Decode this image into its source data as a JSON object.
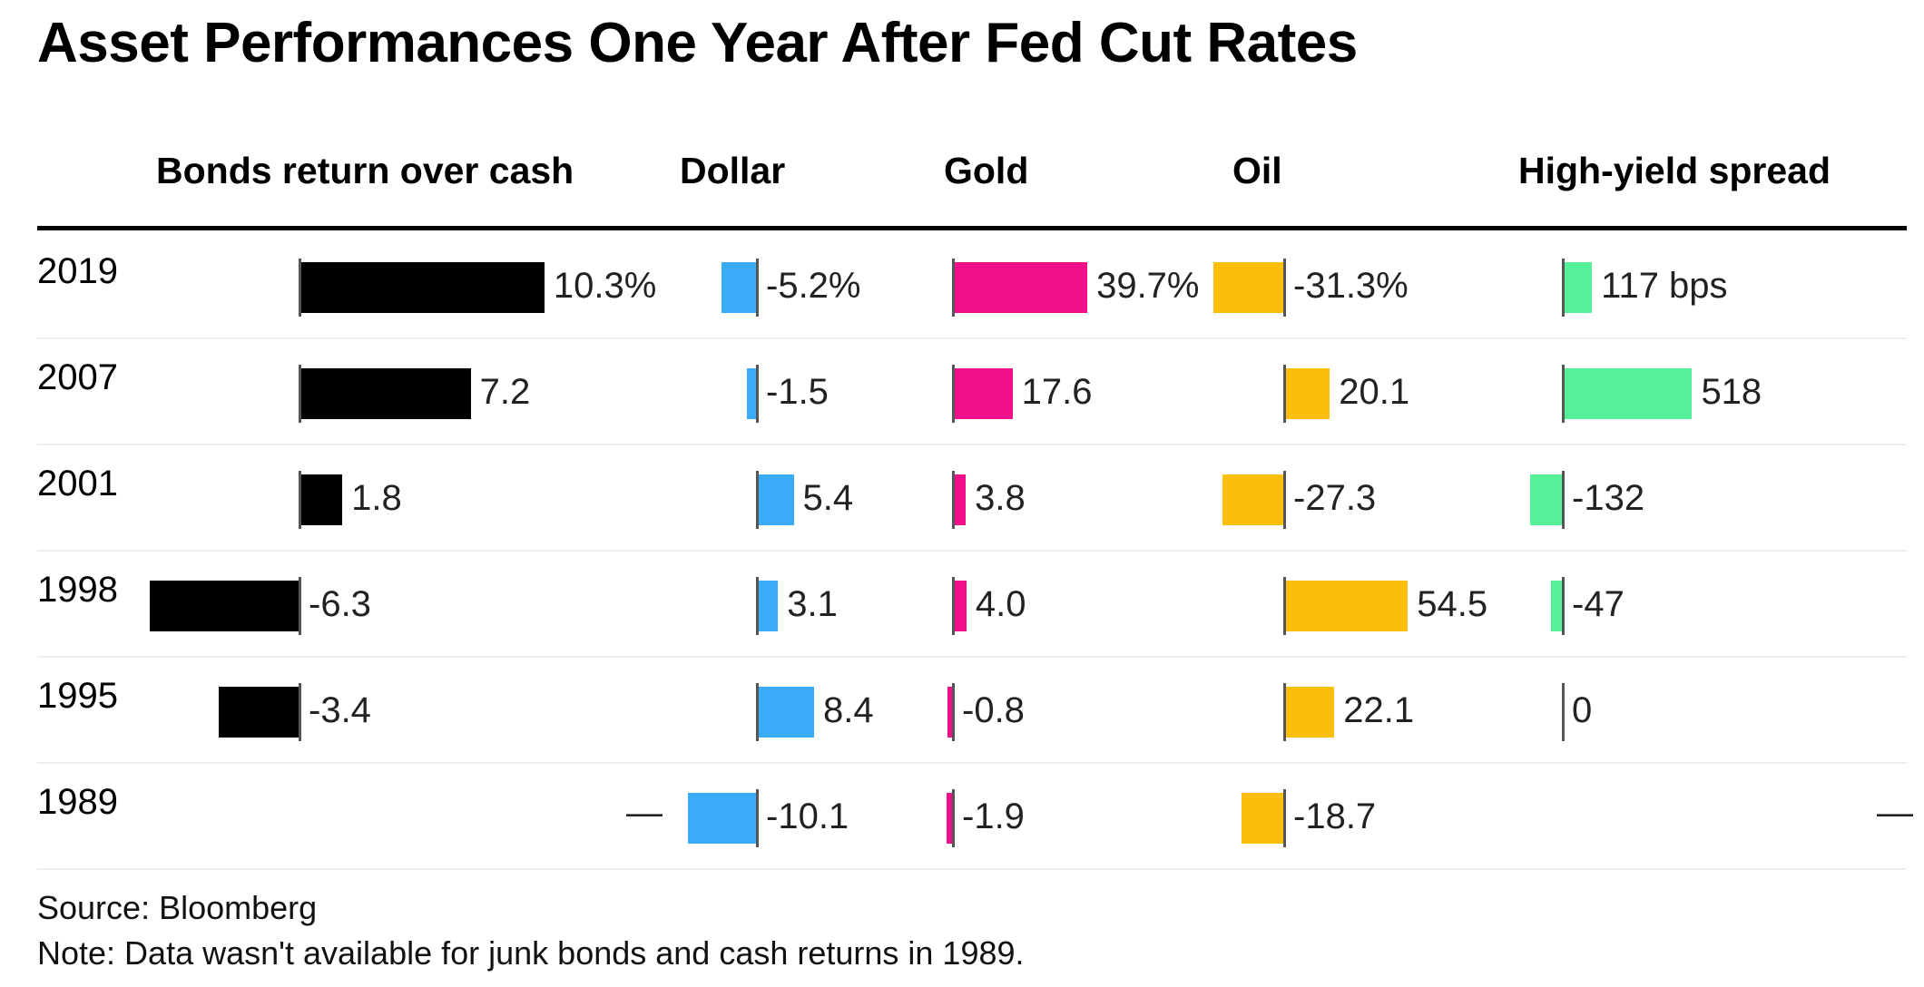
{
  "title": "Asset Performances One Year After Fed Cut Rates",
  "footer": {
    "source": "Source: Bloomberg",
    "note": "Note: Data wasn't available for junk bonds and cash returns in 1989."
  },
  "chart_data": {
    "type": "table",
    "title": "Asset Performances One Year After Fed Cut Rates",
    "rows": [
      "2019",
      "2007",
      "2001",
      "1998",
      "1995",
      "1989"
    ],
    "columns": [
      {
        "key": "bonds",
        "name": "Bonds return over cash",
        "color": "#000000",
        "unit": "%",
        "values": [
          10.3,
          7.2,
          1.8,
          -6.3,
          -3.4,
          null
        ],
        "labels": [
          "10.3%",
          "7.2",
          "1.8",
          "-6.3",
          "-3.4",
          "—"
        ]
      },
      {
        "key": "dollar",
        "name": "Dollar",
        "color": "#3aabf7",
        "unit": "%",
        "values": [
          -5.2,
          -1.5,
          5.4,
          3.1,
          8.4,
          -10.1
        ],
        "labels": [
          "-5.2%",
          "-1.5",
          "5.4",
          "3.1",
          "8.4",
          "-10.1"
        ]
      },
      {
        "key": "gold",
        "name": "Gold",
        "color": "#f0118a",
        "unit": "%",
        "values": [
          39.7,
          17.6,
          3.8,
          4.0,
          -0.8,
          -1.9
        ],
        "labels": [
          "39.7%",
          "17.6",
          "3.8",
          "4.0",
          "-0.8",
          "-1.9"
        ]
      },
      {
        "key": "oil",
        "name": "Oil",
        "color": "#fbbf0a",
        "unit": "%",
        "values": [
          -31.3,
          20.1,
          -27.3,
          54.5,
          22.1,
          -18.7
        ],
        "labels": [
          "-31.3%",
          "20.1",
          "-27.3",
          "54.5",
          "22.1",
          "-18.7"
        ]
      },
      {
        "key": "hy",
        "name": "High-yield spread",
        "color": "#55f097",
        "unit": "bps",
        "values": [
          117,
          518,
          -132,
          -47,
          0,
          null
        ],
        "labels": [
          "117 bps",
          "518",
          "-132",
          "-47",
          "0",
          "—"
        ]
      }
    ]
  }
}
